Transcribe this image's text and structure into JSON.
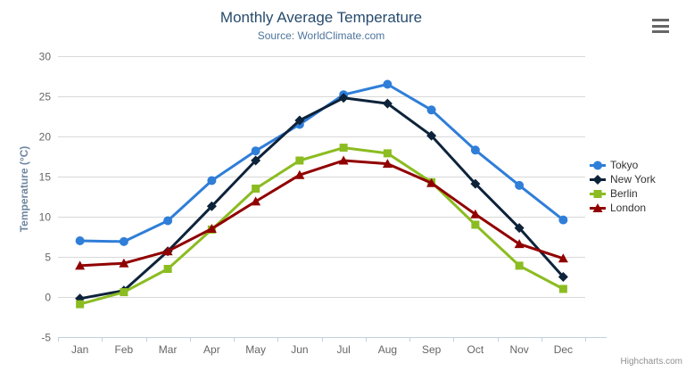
{
  "header": {
    "title": "Monthly Average Temperature",
    "subtitle": "Source: WorldClimate.com"
  },
  "credit_label": "Highcharts.com",
  "export_menu": {
    "icon": "hamburger-icon"
  },
  "colors": {
    "background": "#ffffff",
    "title": "#274b6d",
    "subtitle": "#4d759e",
    "axis_title": "#6d869f",
    "axis_label": "#666666",
    "axis_line": "#c0d0e0",
    "grid": "#d8d8d8",
    "legend_text": "#333333",
    "credit": "#909090",
    "menu_icon": "#666666"
  },
  "chart_data": {
    "type": "line",
    "title": "Monthly Average Temperature",
    "subtitle": "Source: WorldClimate.com",
    "xlabel": "",
    "ylabel": "Temperature (°C)",
    "ylim": [
      -5,
      30
    ],
    "ytick_interval": 5,
    "grid": true,
    "legend_position": "right",
    "categories": [
      "Jan",
      "Feb",
      "Mar",
      "Apr",
      "May",
      "Jun",
      "Jul",
      "Aug",
      "Sep",
      "Oct",
      "Nov",
      "Dec"
    ],
    "series": [
      {
        "name": "Tokyo",
        "color": "#2f7ed8",
        "marker": "circle",
        "values": [
          7.0,
          6.9,
          9.5,
          14.5,
          18.2,
          21.5,
          25.2,
          26.5,
          23.3,
          18.3,
          13.9,
          9.6
        ]
      },
      {
        "name": "New York",
        "color": "#0d233a",
        "marker": "diamond",
        "values": [
          -0.2,
          0.8,
          5.7,
          11.3,
          17.0,
          22.0,
          24.8,
          24.1,
          20.1,
          14.1,
          8.6,
          2.5
        ]
      },
      {
        "name": "Berlin",
        "color": "#8bbc21",
        "marker": "square",
        "values": [
          -0.9,
          0.6,
          3.5,
          8.4,
          13.5,
          17.0,
          18.6,
          17.9,
          14.3,
          9.0,
          3.9,
          1.0
        ]
      },
      {
        "name": "London",
        "color": "#910000",
        "marker": "triangle",
        "values": [
          3.9,
          4.2,
          5.7,
          8.5,
          11.9,
          15.2,
          17.0,
          16.6,
          14.2,
          10.3,
          6.6,
          4.8
        ]
      }
    ]
  }
}
